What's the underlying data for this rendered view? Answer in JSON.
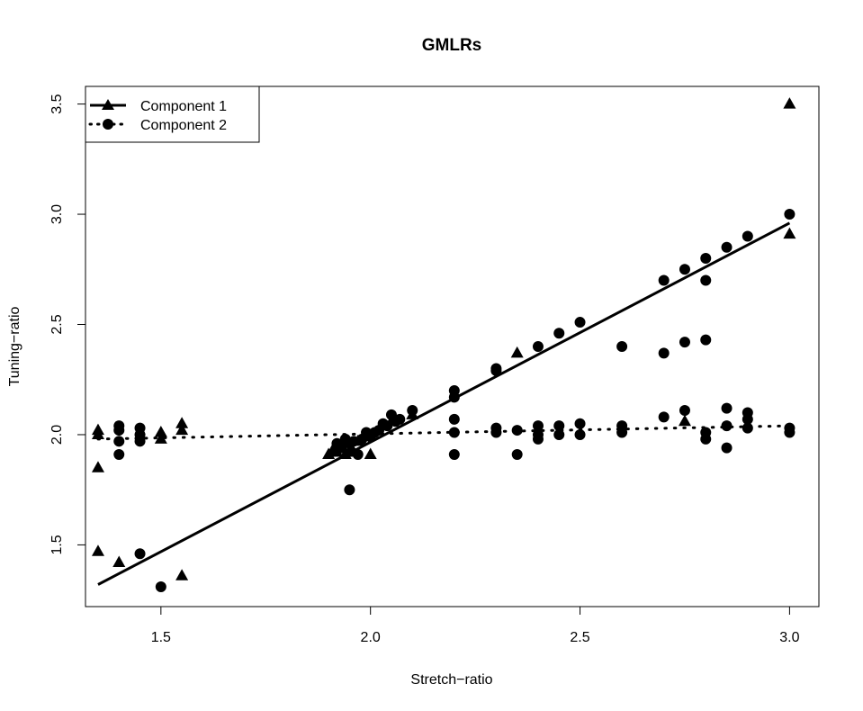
{
  "chart_data": {
    "type": "scatter",
    "title": "GMLRs",
    "xlabel": "Stretch−ratio",
    "ylabel": "Tuning−ratio",
    "xlim": [
      1.32,
      3.07
    ],
    "ylim": [
      1.22,
      3.58
    ],
    "x_ticks": [
      "1.5",
      "2.0",
      "2.5",
      "3.0"
    ],
    "y_ticks": [
      "1.5",
      "2.0",
      "2.5",
      "3.0",
      "3.5"
    ],
    "x_tick_values": [
      1.5,
      2.0,
      2.5,
      3.0
    ],
    "y_tick_values": [
      1.5,
      2.0,
      2.5,
      3.0,
      3.5
    ],
    "legend_position": "top-left",
    "grid": false,
    "series": [
      {
        "name": "Component 1",
        "marker": "triangle",
        "line_style": "solid",
        "fit_line": {
          "x": [
            1.35,
            3.0
          ],
          "y": [
            1.32,
            2.96
          ]
        },
        "points": [
          {
            "x": 1.35,
            "y": 2.02
          },
          {
            "x": 1.35,
            "y": 2.0
          },
          {
            "x": 1.35,
            "y": 1.85
          },
          {
            "x": 1.35,
            "y": 1.47
          },
          {
            "x": 1.4,
            "y": 1.42
          },
          {
            "x": 1.5,
            "y": 2.01
          },
          {
            "x": 1.5,
            "y": 1.98
          },
          {
            "x": 1.55,
            "y": 2.05
          },
          {
            "x": 1.55,
            "y": 2.02
          },
          {
            "x": 1.55,
            "y": 1.36
          },
          {
            "x": 1.9,
            "y": 1.91
          },
          {
            "x": 1.91,
            "y": 1.93
          },
          {
            "x": 1.92,
            "y": 1.92
          },
          {
            "x": 1.93,
            "y": 1.95
          },
          {
            "x": 1.94,
            "y": 1.91
          },
          {
            "x": 1.95,
            "y": 1.93
          },
          {
            "x": 1.96,
            "y": 1.92
          },
          {
            "x": 1.97,
            "y": 1.97
          },
          {
            "x": 2.0,
            "y": 1.91
          },
          {
            "x": 2.02,
            "y": 2.02
          },
          {
            "x": 2.05,
            "y": 2.06
          },
          {
            "x": 2.1,
            "y": 2.09
          },
          {
            "x": 2.35,
            "y": 2.37
          },
          {
            "x": 2.75,
            "y": 2.06
          },
          {
            "x": 3.0,
            "y": 2.91
          },
          {
            "x": 3.0,
            "y": 3.5
          }
        ]
      },
      {
        "name": "Component 2",
        "marker": "circle",
        "line_style": "dotted",
        "fit_line": {
          "x": [
            1.35,
            3.0
          ],
          "y": [
            1.98,
            2.04
          ]
        },
        "points": [
          {
            "x": 1.4,
            "y": 2.04
          },
          {
            "x": 1.4,
            "y": 2.02
          },
          {
            "x": 1.4,
            "y": 1.97
          },
          {
            "x": 1.4,
            "y": 1.91
          },
          {
            "x": 1.45,
            "y": 2.03
          },
          {
            "x": 1.45,
            "y": 2.0
          },
          {
            "x": 1.45,
            "y": 1.97
          },
          {
            "x": 1.45,
            "y": 1.46
          },
          {
            "x": 1.5,
            "y": 1.31
          },
          {
            "x": 1.92,
            "y": 1.96
          },
          {
            "x": 1.93,
            "y": 1.94
          },
          {
            "x": 1.94,
            "y": 1.98
          },
          {
            "x": 1.95,
            "y": 1.96
          },
          {
            "x": 1.95,
            "y": 1.75
          },
          {
            "x": 1.96,
            "y": 1.97
          },
          {
            "x": 1.97,
            "y": 1.91
          },
          {
            "x": 1.98,
            "y": 1.98
          },
          {
            "x": 1.99,
            "y": 2.01
          },
          {
            "x": 2.0,
            "y": 1.99
          },
          {
            "x": 2.01,
            "y": 2.01
          },
          {
            "x": 2.02,
            "y": 2.02
          },
          {
            "x": 2.03,
            "y": 2.05
          },
          {
            "x": 2.04,
            "y": 2.04
          },
          {
            "x": 2.05,
            "y": 2.09
          },
          {
            "x": 2.06,
            "y": 2.06
          },
          {
            "x": 2.07,
            "y": 2.07
          },
          {
            "x": 2.1,
            "y": 2.11
          },
          {
            "x": 2.2,
            "y": 2.2
          },
          {
            "x": 2.2,
            "y": 2.17
          },
          {
            "x": 2.2,
            "y": 2.07
          },
          {
            "x": 2.2,
            "y": 2.01
          },
          {
            "x": 2.2,
            "y": 1.91
          },
          {
            "x": 2.3,
            "y": 2.3
          },
          {
            "x": 2.3,
            "y": 2.29
          },
          {
            "x": 2.3,
            "y": 2.03
          },
          {
            "x": 2.3,
            "y": 2.01
          },
          {
            "x": 2.35,
            "y": 2.02
          },
          {
            "x": 2.35,
            "y": 1.91
          },
          {
            "x": 2.4,
            "y": 2.4
          },
          {
            "x": 2.4,
            "y": 2.04
          },
          {
            "x": 2.4,
            "y": 2.0
          },
          {
            "x": 2.4,
            "y": 1.98
          },
          {
            "x": 2.45,
            "y": 2.46
          },
          {
            "x": 2.45,
            "y": 2.04
          },
          {
            "x": 2.45,
            "y": 2.0
          },
          {
            "x": 2.5,
            "y": 2.51
          },
          {
            "x": 2.5,
            "y": 2.05
          },
          {
            "x": 2.5,
            "y": 2.0
          },
          {
            "x": 2.6,
            "y": 2.4
          },
          {
            "x": 2.6,
            "y": 2.04
          },
          {
            "x": 2.6,
            "y": 2.01
          },
          {
            "x": 2.7,
            "y": 2.7
          },
          {
            "x": 2.7,
            "y": 2.37
          },
          {
            "x": 2.7,
            "y": 2.08
          },
          {
            "x": 2.75,
            "y": 2.75
          },
          {
            "x": 2.75,
            "y": 2.42
          },
          {
            "x": 2.75,
            "y": 2.11
          },
          {
            "x": 2.8,
            "y": 2.8
          },
          {
            "x": 2.8,
            "y": 2.7
          },
          {
            "x": 2.8,
            "y": 2.43
          },
          {
            "x": 2.8,
            "y": 2.01
          },
          {
            "x": 2.8,
            "y": 1.98
          },
          {
            "x": 2.85,
            "y": 2.85
          },
          {
            "x": 2.85,
            "y": 2.12
          },
          {
            "x": 2.85,
            "y": 2.04
          },
          {
            "x": 2.85,
            "y": 1.94
          },
          {
            "x": 2.9,
            "y": 2.9
          },
          {
            "x": 2.9,
            "y": 2.1
          },
          {
            "x": 2.9,
            "y": 2.07
          },
          {
            "x": 2.9,
            "y": 2.03
          },
          {
            "x": 3.0,
            "y": 3.0
          },
          {
            "x": 3.0,
            "y": 2.03
          },
          {
            "x": 3.0,
            "y": 2.01
          }
        ]
      }
    ]
  }
}
